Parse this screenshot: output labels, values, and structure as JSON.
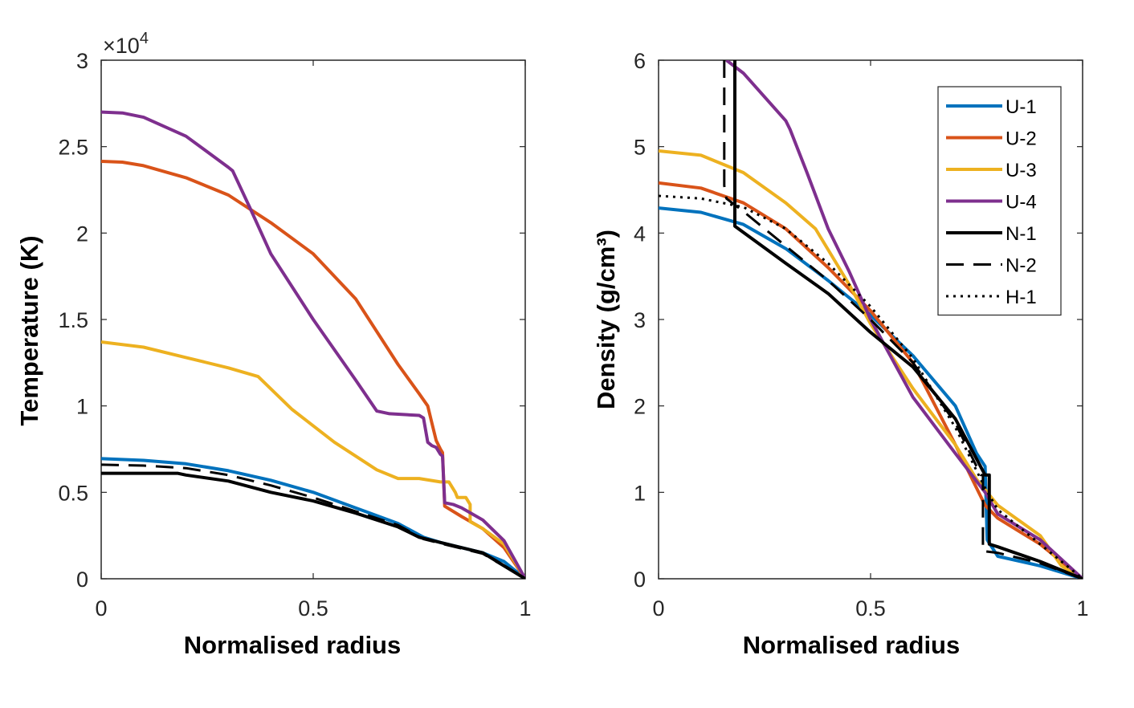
{
  "figure": {
    "description_free": true
  },
  "colors": {
    "U-1": "#0072BD",
    "U-2": "#D95319",
    "U-3": "#EDB120",
    "U-4": "#7E2F8E",
    "N-1": "#000000",
    "N-2": "#000000",
    "H-1": "#000000"
  },
  "chart_data": [
    {
      "type": "line",
      "id": "temperature",
      "title": "",
      "xlabel": "Normalised radius",
      "ylabel": "Temperature (K)",
      "xlim": [
        0,
        1
      ],
      "ylim": [
        0,
        30000
      ],
      "xticks": [
        0,
        0.5,
        1
      ],
      "xtick_labels": [
        "0",
        "0.5",
        "1"
      ],
      "yticks": [
        0,
        5000,
        10000,
        15000,
        20000,
        25000,
        30000
      ],
      "ytick_labels": [
        "0",
        "0.5",
        "1",
        "1.5",
        "2",
        "2.5",
        "3"
      ],
      "exponent_label": {
        "prefix": "×10",
        "power": "4"
      },
      "series": [
        {
          "name": "U-1",
          "style": "solid",
          "points": [
            [
              0,
              6950
            ],
            [
              0.1,
              6850
            ],
            [
              0.2,
              6650
            ],
            [
              0.3,
              6250
            ],
            [
              0.4,
              5700
            ],
            [
              0.5,
              5000
            ],
            [
              0.6,
              4100
            ],
            [
              0.7,
              3200
            ],
            [
              0.76,
              2400
            ],
            [
              0.8,
              2100
            ],
            [
              0.9,
              1500
            ],
            [
              0.95,
              1000
            ],
            [
              1,
              0
            ]
          ]
        },
        {
          "name": "U-2",
          "style": "solid",
          "points": [
            [
              0,
              24150
            ],
            [
              0.05,
              24100
            ],
            [
              0.1,
              23900
            ],
            [
              0.2,
              23200
            ],
            [
              0.3,
              22200
            ],
            [
              0.4,
              20600
            ],
            [
              0.5,
              18800
            ],
            [
              0.6,
              16200
            ],
            [
              0.7,
              12400
            ],
            [
              0.75,
              10700
            ],
            [
              0.77,
              10000
            ],
            [
              0.78,
              9000
            ],
            [
              0.79,
              8000
            ],
            [
              0.8,
              7500
            ],
            [
              0.805,
              7300
            ],
            [
              0.81,
              4200
            ],
            [
              0.85,
              3600
            ],
            [
              0.9,
              2900
            ],
            [
              0.95,
              1800
            ],
            [
              1,
              0
            ]
          ]
        },
        {
          "name": "U-3",
          "style": "solid",
          "points": [
            [
              0,
              13700
            ],
            [
              0.1,
              13400
            ],
            [
              0.2,
              12800
            ],
            [
              0.3,
              12200
            ],
            [
              0.37,
              11700
            ],
            [
              0.45,
              9800
            ],
            [
              0.55,
              7900
            ],
            [
              0.65,
              6300
            ],
            [
              0.7,
              5800
            ],
            [
              0.75,
              5800
            ],
            [
              0.8,
              5600
            ],
            [
              0.82,
              5600
            ],
            [
              0.835,
              5000
            ],
            [
              0.84,
              4700
            ],
            [
              0.86,
              4700
            ],
            [
              0.87,
              4300
            ],
            [
              0.87,
              3300
            ],
            [
              0.9,
              2900
            ],
            [
              0.95,
              2000
            ],
            [
              1,
              0
            ]
          ]
        },
        {
          "name": "U-4",
          "style": "solid",
          "points": [
            [
              0,
              27000
            ],
            [
              0.05,
              26950
            ],
            [
              0.1,
              26700
            ],
            [
              0.2,
              25600
            ],
            [
              0.3,
              23800
            ],
            [
              0.31,
              23600
            ],
            [
              0.35,
              21500
            ],
            [
              0.4,
              18800
            ],
            [
              0.5,
              15000
            ],
            [
              0.6,
              11500
            ],
            [
              0.65,
              9700
            ],
            [
              0.68,
              9550
            ],
            [
              0.75,
              9450
            ],
            [
              0.76,
              9300
            ],
            [
              0.77,
              7900
            ],
            [
              0.78,
              7700
            ],
            [
              0.79,
              7600
            ],
            [
              0.8,
              7200
            ],
            [
              0.805,
              7100
            ],
            [
              0.81,
              4400
            ],
            [
              0.83,
              4300
            ],
            [
              0.85,
              4100
            ],
            [
              0.9,
              3400
            ],
            [
              0.95,
              2200
            ],
            [
              1,
              0
            ]
          ]
        },
        {
          "name": "N-1",
          "style": "solid",
          "points": [
            [
              0,
              6100
            ],
            [
              0.1,
              6100
            ],
            [
              0.18,
              6100
            ],
            [
              0.2,
              6000
            ],
            [
              0.3,
              5650
            ],
            [
              0.4,
              5000
            ],
            [
              0.5,
              4500
            ],
            [
              0.6,
              3800
            ],
            [
              0.7,
              3000
            ],
            [
              0.75,
              2400
            ],
            [
              0.8,
              2100
            ],
            [
              0.9,
              1500
            ],
            [
              1,
              0
            ]
          ]
        },
        {
          "name": "N-2",
          "style": "dashed",
          "points": [
            [
              0,
              6600
            ],
            [
              0.1,
              6550
            ],
            [
              0.2,
              6400
            ],
            [
              0.3,
              6000
            ],
            [
              0.4,
              5400
            ],
            [
              0.5,
              4700
            ],
            [
              0.6,
              3900
            ],
            [
              0.7,
              3100
            ],
            [
              0.76,
              2300
            ],
            [
              0.8,
              2050
            ],
            [
              0.9,
              1450
            ],
            [
              1,
              0
            ]
          ]
        }
      ]
    },
    {
      "type": "line",
      "id": "density",
      "title": "",
      "xlabel": "Normalised radius",
      "ylabel": "Density (g/cm³)",
      "xlim": [
        0,
        1
      ],
      "ylim": [
        0,
        6
      ],
      "xticks": [
        0,
        0.5,
        1
      ],
      "xtick_labels": [
        "0",
        "0.5",
        "1"
      ],
      "yticks": [
        0,
        1,
        2,
        3,
        4,
        5,
        6
      ],
      "ytick_labels": [
        "0",
        "1",
        "2",
        "3",
        "4",
        "5",
        "6"
      ],
      "legend": {
        "position": "top-right",
        "entries": [
          "U-1",
          "U-2",
          "U-3",
          "U-4",
          "N-1",
          "N-2",
          "H-1"
        ]
      },
      "series": [
        {
          "name": "U-1",
          "style": "solid",
          "points": [
            [
              0,
              4.29
            ],
            [
              0.1,
              4.24
            ],
            [
              0.2,
              4.1
            ],
            [
              0.3,
              3.82
            ],
            [
              0.4,
              3.45
            ],
            [
              0.5,
              3.05
            ],
            [
              0.6,
              2.58
            ],
            [
              0.7,
              2.0
            ],
            [
              0.75,
              1.45
            ],
            [
              0.77,
              1.3
            ],
            [
              0.775,
              0.45
            ],
            [
              0.8,
              0.26
            ],
            [
              0.9,
              0.15
            ],
            [
              1,
              0
            ]
          ]
        },
        {
          "name": "U-2",
          "style": "solid",
          "points": [
            [
              0,
              4.58
            ],
            [
              0.1,
              4.52
            ],
            [
              0.2,
              4.35
            ],
            [
              0.3,
              4.05
            ],
            [
              0.4,
              3.6
            ],
            [
              0.5,
              3.1
            ],
            [
              0.6,
              2.5
            ],
            [
              0.7,
              1.55
            ],
            [
              0.75,
              1.05
            ],
            [
              0.77,
              0.85
            ],
            [
              0.8,
              0.7
            ],
            [
              0.9,
              0.4
            ],
            [
              1,
              0
            ]
          ]
        },
        {
          "name": "U-3",
          "style": "solid",
          "points": [
            [
              0,
              4.95
            ],
            [
              0.1,
              4.9
            ],
            [
              0.2,
              4.7
            ],
            [
              0.3,
              4.35
            ],
            [
              0.37,
              4.05
            ],
            [
              0.45,
              3.4
            ],
            [
              0.5,
              2.95
            ],
            [
              0.6,
              2.2
            ],
            [
              0.7,
              1.55
            ],
            [
              0.75,
              1.15
            ],
            [
              0.8,
              0.85
            ],
            [
              0.9,
              0.5
            ],
            [
              0.95,
              0.15
            ],
            [
              1,
              0
            ]
          ]
        },
        {
          "name": "U-4",
          "style": "solid",
          "points": [
            [
              0.16,
              6.0
            ],
            [
              0.2,
              5.85
            ],
            [
              0.3,
              5.3
            ],
            [
              0.31,
              5.2
            ],
            [
              0.35,
              4.7
            ],
            [
              0.4,
              4.05
            ],
            [
              0.45,
              3.55
            ],
            [
              0.5,
              3.0
            ],
            [
              0.6,
              2.1
            ],
            [
              0.7,
              1.45
            ],
            [
              0.77,
              1.0
            ],
            [
              0.8,
              0.75
            ],
            [
              0.9,
              0.45
            ],
            [
              1,
              0
            ]
          ]
        },
        {
          "name": "N-1",
          "style": "solid",
          "points": [
            [
              0.18,
              6.0
            ],
            [
              0.18,
              4.08
            ],
            [
              0.3,
              3.65
            ],
            [
              0.4,
              3.3
            ],
            [
              0.5,
              2.85
            ],
            [
              0.6,
              2.45
            ],
            [
              0.7,
              1.85
            ],
            [
              0.77,
              1.2
            ],
            [
              0.78,
              1.2
            ],
            [
              0.78,
              0.4
            ],
            [
              0.8,
              0.37
            ],
            [
              0.9,
              0.2
            ],
            [
              1,
              0
            ]
          ]
        },
        {
          "name": "N-2",
          "style": "dashed",
          "points": [
            [
              0.155,
              6.0
            ],
            [
              0.155,
              4.55
            ],
            [
              0.16,
              4.4
            ],
            [
              0.2,
              4.25
            ],
            [
              0.3,
              3.85
            ],
            [
              0.4,
              3.45
            ],
            [
              0.5,
              3.0
            ],
            [
              0.6,
              2.5
            ],
            [
              0.7,
              1.8
            ],
            [
              0.76,
              1.2
            ],
            [
              0.765,
              1.2
            ],
            [
              0.765,
              0.32
            ],
            [
              0.8,
              0.3
            ],
            [
              0.9,
              0.18
            ],
            [
              1,
              0
            ]
          ]
        },
        {
          "name": "H-1",
          "style": "dotted",
          "points": [
            [
              0,
              4.43
            ],
            [
              0.1,
              4.4
            ],
            [
              0.2,
              4.3
            ],
            [
              0.3,
              4.05
            ],
            [
              0.4,
              3.65
            ],
            [
              0.5,
              3.15
            ],
            [
              0.6,
              2.55
            ],
            [
              0.7,
              1.75
            ],
            [
              0.77,
              1.05
            ],
            [
              0.8,
              0.8
            ],
            [
              0.9,
              0.4
            ],
            [
              1,
              0
            ]
          ]
        }
      ]
    }
  ]
}
